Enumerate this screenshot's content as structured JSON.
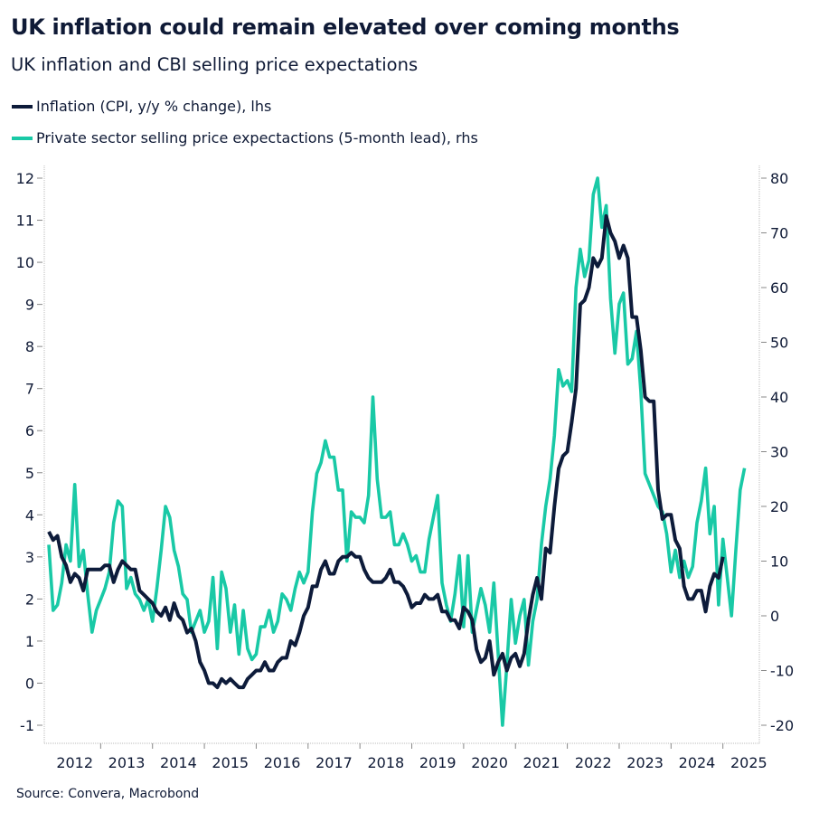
{
  "chart_data": {
    "type": "line",
    "title": "UK inflation could remain elevated over coming months",
    "subtitle": "UK inflation and CBI selling price expectations",
    "source": "Source: Convera, Macrobond",
    "legend_placement": "top-left",
    "grid": false,
    "x_tick_labels": [
      "2012",
      "2013",
      "2014",
      "2015",
      "2016",
      "2017",
      "2018",
      "2019",
      "2020",
      "2021",
      "2022",
      "2023",
      "2024",
      "2025"
    ],
    "y_left": {
      "ylim": [
        -1,
        12
      ],
      "ticks": [
        "-1",
        "0",
        "1",
        "2",
        "3",
        "4",
        "5",
        "6",
        "7",
        "8",
        "9",
        "10",
        "11",
        "12"
      ]
    },
    "y_right": {
      "ylim": [
        -20,
        80
      ],
      "ticks": [
        "-20",
        "-10",
        "0",
        "10",
        "20",
        "30",
        "40",
        "50",
        "60",
        "70",
        "80"
      ]
    },
    "series": [
      {
        "name": "Inflation (CPI, y/y % change), lhs",
        "axis": "left",
        "color": "#0d1b3a",
        "x_start": "2012-01",
        "frequency": "monthly",
        "values": [
          3.6,
          3.4,
          3.5,
          3.0,
          2.8,
          2.4,
          2.6,
          2.5,
          2.2,
          2.7,
          2.7,
          2.7,
          2.7,
          2.8,
          2.8,
          2.4,
          2.7,
          2.9,
          2.8,
          2.7,
          2.7,
          2.2,
          2.1,
          2.0,
          1.9,
          1.7,
          1.6,
          1.8,
          1.5,
          1.9,
          1.6,
          1.5,
          1.2,
          1.3,
          1.0,
          0.5,
          0.3,
          0.0,
          0.0,
          -0.1,
          0.1,
          0.0,
          0.1,
          0.0,
          -0.1,
          -0.1,
          0.1,
          0.2,
          0.3,
          0.3,
          0.5,
          0.3,
          0.3,
          0.5,
          0.6,
          0.6,
          1.0,
          0.9,
          1.2,
          1.6,
          1.8,
          2.3,
          2.3,
          2.7,
          2.9,
          2.6,
          2.6,
          2.9,
          3.0,
          3.0,
          3.1,
          3.0,
          3.0,
          2.7,
          2.5,
          2.4,
          2.4,
          2.4,
          2.5,
          2.7,
          2.4,
          2.4,
          2.3,
          2.1,
          1.8,
          1.9,
          1.9,
          2.1,
          2.0,
          2.0,
          2.1,
          1.7,
          1.7,
          1.5,
          1.5,
          1.3,
          1.8,
          1.7,
          1.5,
          0.8,
          0.5,
          0.6,
          1.0,
          0.2,
          0.5,
          0.7,
          0.3,
          0.6,
          0.7,
          0.4,
          0.7,
          1.5,
          2.1,
          2.5,
          2.0,
          3.2,
          3.1,
          4.2,
          5.1,
          5.4,
          5.5,
          6.2,
          7.0,
          9.0,
          9.1,
          9.4,
          10.1,
          9.9,
          10.1,
          11.1,
          10.7,
          10.5,
          10.1,
          10.4,
          10.1,
          8.7,
          8.7,
          7.9,
          6.8,
          6.7,
          6.7,
          4.6,
          3.9,
          4.0,
          4.0,
          3.4,
          3.2,
          2.3,
          2.0,
          2.0,
          2.2,
          2.2,
          1.7,
          2.3,
          2.6,
          2.5,
          3.0
        ]
      },
      {
        "name": "Private sector selling price expectactions (5-month lead), rhs",
        "axis": "right",
        "color": "#19c9a6",
        "x_start": "2012-01",
        "frequency": "monthly",
        "values": [
          13,
          1,
          2,
          6,
          13,
          10,
          24,
          9,
          12,
          4,
          -3,
          1,
          3,
          5,
          8,
          17,
          21,
          20,
          5,
          7,
          4,
          3,
          1,
          3,
          -1,
          5,
          12,
          20,
          18,
          12,
          9,
          4,
          3,
          -3,
          -1,
          1,
          -3,
          -1,
          7,
          -6,
          8,
          5,
          -3,
          2,
          -7,
          1,
          -6,
          -8,
          -7,
          -2,
          -2,
          1,
          -3,
          -1,
          4,
          3,
          1,
          5,
          8,
          6,
          8,
          19,
          26,
          28,
          32,
          29,
          29,
          23,
          23,
          10,
          19,
          18,
          18,
          17,
          22,
          40,
          25,
          18,
          18,
          19,
          13,
          13,
          15,
          13,
          10,
          11,
          8,
          8,
          14,
          18,
          22,
          6,
          2,
          -1,
          4,
          11,
          -2,
          11,
          -3,
          1,
          5,
          2,
          -3,
          6,
          -7,
          -20,
          -9,
          3,
          -5,
          0,
          3,
          -9,
          -1,
          3,
          13,
          20,
          25,
          33,
          45,
          42,
          43,
          41,
          60,
          67,
          62,
          65,
          77,
          80,
          71,
          75,
          58,
          48,
          57,
          59,
          46,
          47,
          52,
          41,
          26,
          24,
          22,
          20,
          19,
          15,
          8,
          12,
          7,
          10,
          7,
          9,
          17,
          21,
          27,
          15,
          20,
          2,
          14,
          7,
          0,
          12,
          23,
          27
        ]
      }
    ]
  }
}
